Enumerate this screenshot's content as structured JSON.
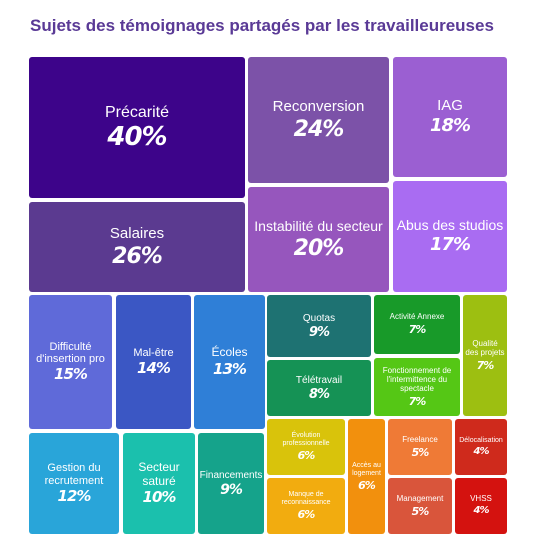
{
  "title": "Sujets des témoignages partagés par les travailleureuses",
  "chart_data": {
    "type": "treemap",
    "title": "Sujets des témoignages partagés par les travailleureuses",
    "unit": "%",
    "items": [
      {
        "label": "Précarité",
        "value": 40,
        "display": "40%",
        "color": "#3d048a"
      },
      {
        "label": "Salaires",
        "value": 26,
        "display": "26%",
        "color": "#5b3a90"
      },
      {
        "label": "Reconversion",
        "value": 24,
        "display": "24%",
        "color": "#7c52a8"
      },
      {
        "label": "Instabilité du secteur",
        "value": 20,
        "display": "20%",
        "color": "#9656bd"
      },
      {
        "label": "IAG",
        "value": 18,
        "display": "18%",
        "color": "#9b5fd2"
      },
      {
        "label": "Abus des studios",
        "value": 17,
        "display": "17%",
        "color": "#a96cf2"
      },
      {
        "label": "Difficulté d'insertion pro",
        "value": 15,
        "display": "15%",
        "color": "#5f6ad9"
      },
      {
        "label": "Mal-être",
        "value": 14,
        "display": "14%",
        "color": "#3b57c4"
      },
      {
        "label": "Écoles",
        "value": 13,
        "display": "13%",
        "color": "#2f7fd7"
      },
      {
        "label": "Gestion du recrutement",
        "value": 12,
        "display": "12%",
        "color": "#29a5d9"
      },
      {
        "label": "Secteur saturé",
        "value": 10,
        "display": "10%",
        "color": "#1bc0ad"
      },
      {
        "label": "Financements",
        "value": 9,
        "display": "9%",
        "color": "#15a38b"
      },
      {
        "label": "Quotas",
        "value": 9,
        "display": "9%",
        "color": "#1e7272"
      },
      {
        "label": "Télétravail",
        "value": 8,
        "display": "8%",
        "color": "#159255"
      },
      {
        "label": "Activité Annexe",
        "value": 7,
        "display": "7%",
        "color": "#189a29"
      },
      {
        "label": "Fonctionnement de l'intermittence du spectacle",
        "value": 7,
        "display": "7%",
        "color": "#55c715"
      },
      {
        "label": "Qualité des projets",
        "value": 7,
        "display": "7%",
        "color": "#9dbf11"
      },
      {
        "label": "Évolution professionnelle",
        "value": 6,
        "display": "6%",
        "color": "#d9c30b"
      },
      {
        "label": "Manque de reconnaissance",
        "value": 6,
        "display": "6%",
        "color": "#f2ac0f"
      },
      {
        "label": "Accès au logement",
        "value": 6,
        "display": "6%",
        "color": "#f2900d"
      },
      {
        "label": "Freelance",
        "value": 5,
        "display": "5%",
        "color": "#ef7a36"
      },
      {
        "label": "Management",
        "value": 5,
        "display": "5%",
        "color": "#d9553b"
      },
      {
        "label": "Délocalisation",
        "value": 4,
        "display": "4%",
        "color": "#cf2a1c"
      },
      {
        "label": "VHSS",
        "value": 4,
        "display": "4%",
        "color": "#d4120f"
      }
    ]
  }
}
